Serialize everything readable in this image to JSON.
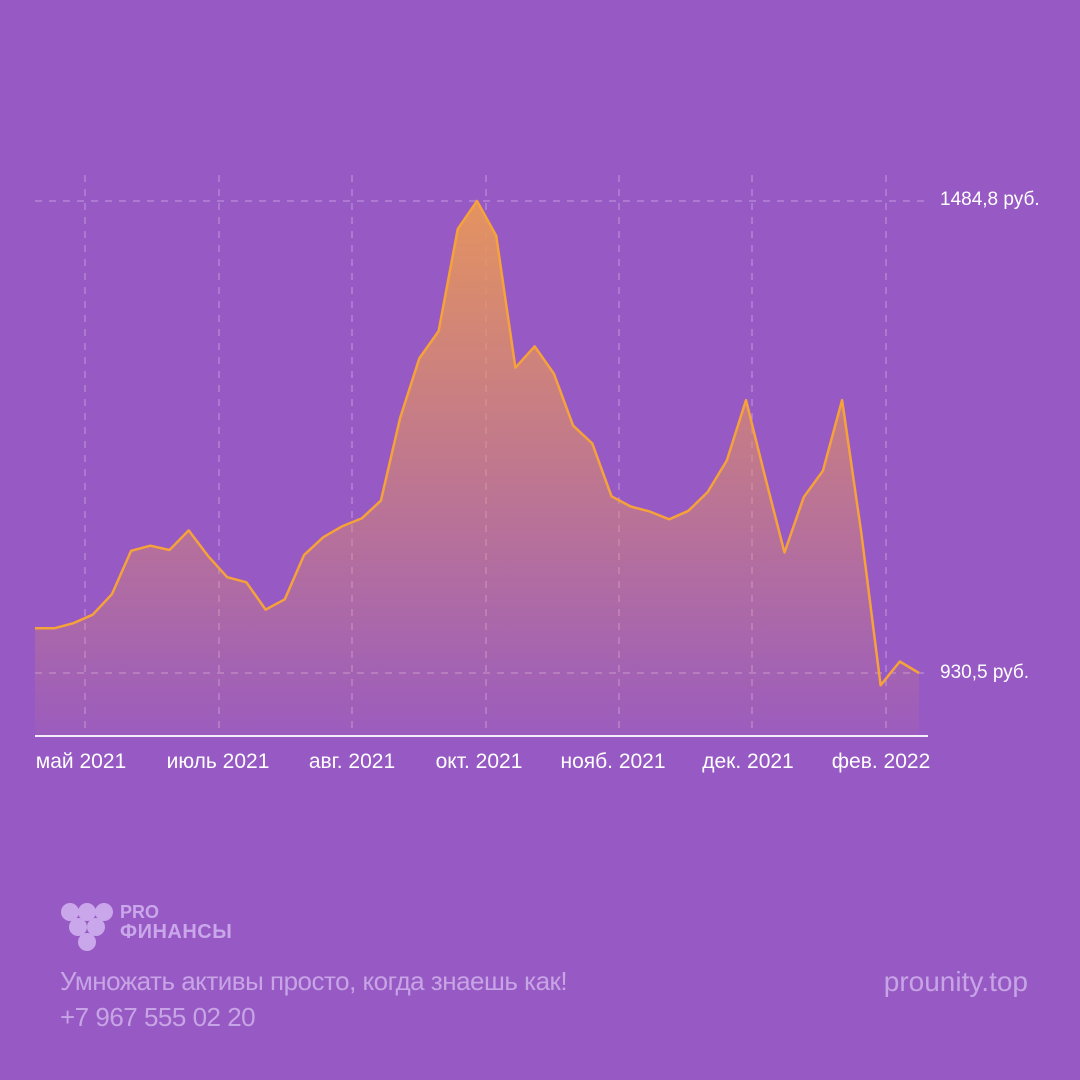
{
  "chart_data": {
    "type": "area",
    "x_tick_labels": [
      "май 2021",
      "июль 2021",
      "авг. 2021",
      "окт. 2021",
      "нояб. 2021",
      "дек. 2021",
      "фев. 2022"
    ],
    "reference_lines": [
      {
        "label": "1484,8 руб.",
        "value": 1484.8
      },
      {
        "label": "930,5 руб.",
        "value": 930.5
      }
    ],
    "ylim": [
      858,
      1512
    ],
    "series": [
      {
        "values": [
          983,
          983,
          989,
          999,
          1023,
          1074,
          1080,
          1075,
          1098,
          1068,
          1043,
          1037,
          1005,
          1017,
          1069,
          1090,
          1103,
          1112,
          1133,
          1230,
          1300,
          1332,
          1452,
          1484.8,
          1444,
          1289,
          1314,
          1282,
          1221,
          1200,
          1138,
          1126,
          1120,
          1111,
          1121,
          1143,
          1180,
          1251,
          1160,
          1072,
          1137,
          1168,
          1251,
          1095,
          916,
          944,
          930.5
        ]
      }
    ],
    "grid": "dashed"
  },
  "colors": {
    "background": "#9759c3",
    "line": "#f5a23a",
    "fill_top": "#e0904e",
    "grid": "#c49be0"
  },
  "brand": {
    "logo_line1": "PRO",
    "logo_line2": "ФИНАНСЫ"
  },
  "footer": {
    "tagline": "Умножать активы просто, когда знаешь как!",
    "phone": "+7 967 555 02 20",
    "website": "prounity.top"
  }
}
